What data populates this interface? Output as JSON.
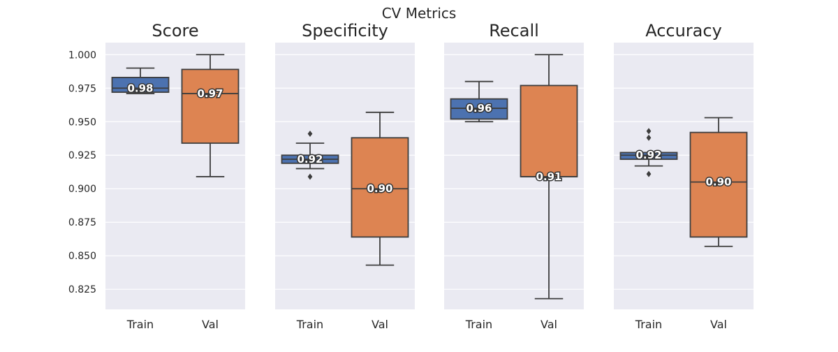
{
  "chart_data": {
    "type": "box",
    "title": "CV Metrics",
    "categories": [
      "Train",
      "Val"
    ],
    "colors": {
      "Train": "#4c72b0",
      "Val": "#dd8452"
    },
    "ylim": [
      0.81,
      1.009
    ],
    "yticks": [
      0.825,
      0.85,
      0.875,
      0.9,
      0.925,
      0.95,
      0.975,
      1.0
    ],
    "ytick_labels": [
      "0.825",
      "0.850",
      "0.875",
      "0.900",
      "0.925",
      "0.950",
      "0.975",
      "1.000"
    ],
    "grid": true,
    "panels": [
      {
        "title": "Score",
        "boxes": [
          {
            "category": "Train",
            "whisker_low": 0.971,
            "q1": 0.972,
            "median": 0.975,
            "q3": 0.983,
            "whisker_high": 0.99,
            "outliers": [],
            "median_label": "0.98"
          },
          {
            "category": "Val",
            "whisker_low": 0.909,
            "q1": 0.934,
            "median": 0.971,
            "q3": 0.989,
            "whisker_high": 1.0,
            "outliers": [],
            "median_label": "0.97"
          }
        ]
      },
      {
        "title": "Specificity",
        "boxes": [
          {
            "category": "Train",
            "whisker_low": 0.915,
            "q1": 0.919,
            "median": 0.922,
            "q3": 0.925,
            "whisker_high": 0.934,
            "outliers": [
              0.941,
              0.909
            ],
            "median_label": "0.92"
          },
          {
            "category": "Val",
            "whisker_low": 0.843,
            "q1": 0.864,
            "median": 0.9,
            "q3": 0.938,
            "whisker_high": 0.957,
            "outliers": [],
            "median_label": "0.90"
          }
        ]
      },
      {
        "title": "Recall",
        "boxes": [
          {
            "category": "Train",
            "whisker_low": 0.95,
            "q1": 0.952,
            "median": 0.96,
            "q3": 0.967,
            "whisker_high": 0.98,
            "outliers": [],
            "median_label": "0.96"
          },
          {
            "category": "Val",
            "whisker_low": 0.818,
            "q1": 0.909,
            "median": 0.909,
            "q3": 0.977,
            "whisker_high": 1.0,
            "outliers": [],
            "median_label": "0.91"
          }
        ]
      },
      {
        "title": "Accuracy",
        "boxes": [
          {
            "category": "Train",
            "whisker_low": 0.917,
            "q1": 0.922,
            "median": 0.925,
            "q3": 0.927,
            "whisker_high": 0.927,
            "outliers": [
              0.943,
              0.938,
              0.911
            ],
            "median_label": "0.92"
          },
          {
            "category": "Val",
            "whisker_low": 0.857,
            "q1": 0.864,
            "median": 0.905,
            "q3": 0.942,
            "whisker_high": 0.953,
            "outliers": [],
            "median_label": "0.90"
          }
        ]
      }
    ]
  }
}
